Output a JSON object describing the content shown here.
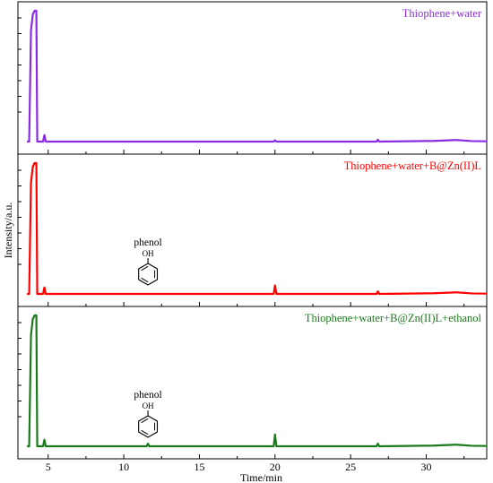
{
  "chart_data": {
    "type": "line",
    "xlabel": "Time/min",
    "ylabel": "Intensity/a.u.",
    "xlim": [
      3,
      34
    ],
    "x_ticks": [
      5,
      10,
      15,
      20,
      25,
      30
    ],
    "grid": false,
    "panels": [
      {
        "name": "Thiophene+water",
        "color": "#8b2be2",
        "baseline": 0.0,
        "peaks": [
          {
            "x": 4.1,
            "height": 1.0,
            "label": ""
          },
          {
            "x": 4.75,
            "height": 0.05,
            "label": ""
          },
          {
            "x": 20.0,
            "height": 0.01,
            "label": ""
          },
          {
            "x": 26.8,
            "height": 0.015,
            "label": ""
          }
        ],
        "annotation": null
      },
      {
        "name": "Thiophene+water+B@Zn(II)L",
        "color": "#ff0000",
        "baseline": 0.0,
        "peaks": [
          {
            "x": 4.1,
            "height": 1.0,
            "label": ""
          },
          {
            "x": 4.75,
            "height": 0.05,
            "label": ""
          },
          {
            "x": 20.0,
            "height": 0.065,
            "label": ""
          },
          {
            "x": 26.8,
            "height": 0.02,
            "label": ""
          }
        ],
        "annotation": {
          "x": 11.6,
          "text": "phenol",
          "group": "OH"
        }
      },
      {
        "name": "Thiophene+water+B@Zn(II)L+ethanol",
        "color": "#1b7a1b",
        "baseline": 0.0,
        "peaks": [
          {
            "x": 4.1,
            "height": 1.0,
            "label": ""
          },
          {
            "x": 4.75,
            "height": 0.05,
            "label": ""
          },
          {
            "x": 11.6,
            "height": 0.02,
            "label": ""
          },
          {
            "x": 20.0,
            "height": 0.09,
            "label": ""
          },
          {
            "x": 26.8,
            "height": 0.02,
            "label": ""
          }
        ],
        "annotation": {
          "x": 11.6,
          "text": "phenol",
          "group": "OH"
        }
      }
    ]
  }
}
